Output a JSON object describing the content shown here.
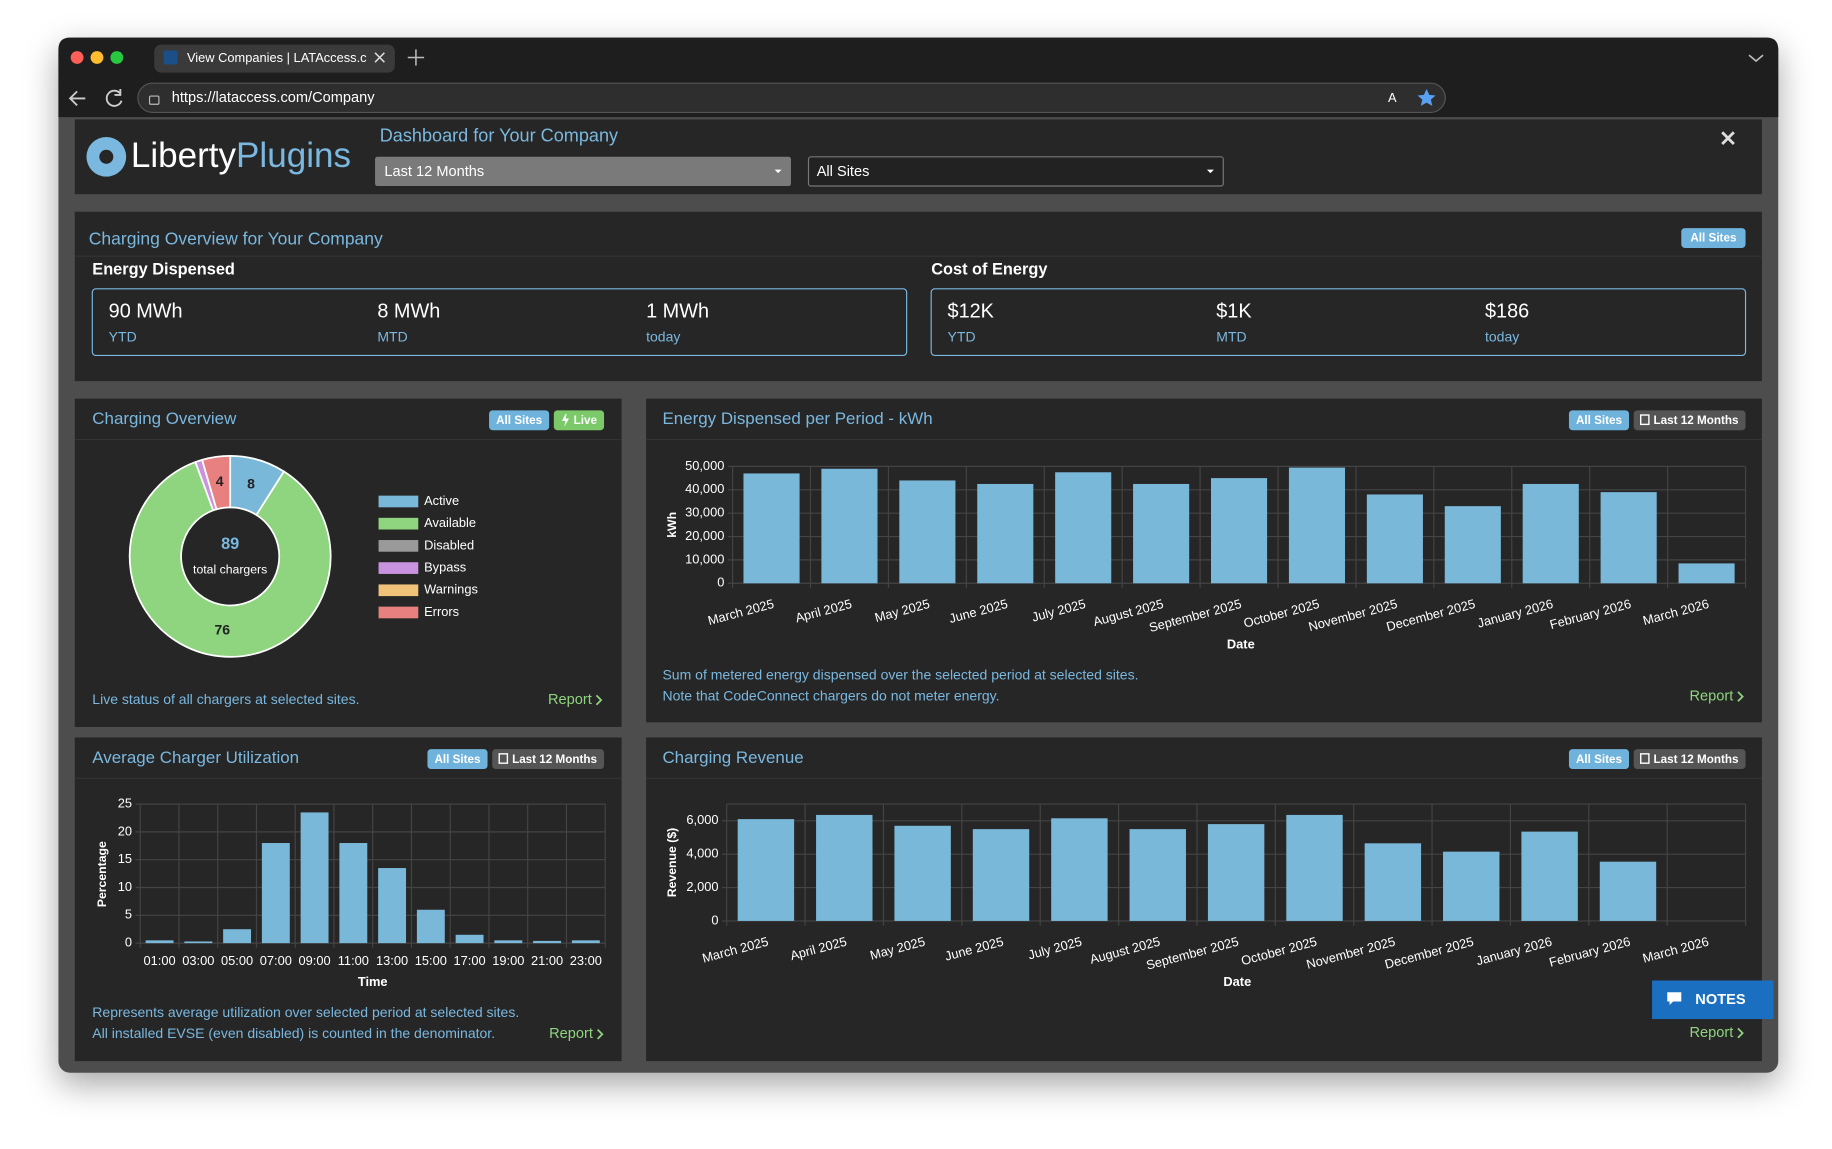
{
  "browser": {
    "tab_title": "View Companies | LATAccess.c",
    "url": "https://lataccess.com/Company"
  },
  "header": {
    "logo_a": "Liberty",
    "logo_b": "Plugins",
    "title": "Dashboard for Your Company",
    "period_select": "Last 12 Months",
    "site_select": "All Sites"
  },
  "overview": {
    "title": "Charging Overview for Your Company",
    "badge": "All Sites",
    "energy": {
      "label": "Energy Dispensed",
      "items": [
        {
          "value": "90 MWh",
          "label": "YTD"
        },
        {
          "value": "8 MWh",
          "label": "MTD"
        },
        {
          "value": "1 MWh",
          "label": "today"
        }
      ]
    },
    "cost": {
      "label": "Cost of Energy",
      "items": [
        {
          "value": "$12K",
          "label": "YTD"
        },
        {
          "value": "$1K",
          "label": "MTD"
        },
        {
          "value": "$186",
          "label": "today"
        }
      ]
    }
  },
  "chart_data": [
    {
      "type": "pie",
      "title": "Charging Overview",
      "badges": [
        "All Sites",
        "Live"
      ],
      "categories": [
        "Active",
        "Available",
        "Disabled",
        "Bypass",
        "Warnings",
        "Errors"
      ],
      "values": [
        8,
        76,
        0,
        1,
        0,
        4
      ],
      "colors": [
        "#7ab8d9",
        "#8fd47f",
        "#9a9a9a",
        "#c993e0",
        "#f0c27a",
        "#e88080"
      ],
      "total": 89,
      "total_label": "total chargers",
      "footer": [
        "Live status of all chargers at selected sites."
      ],
      "link": "Report"
    },
    {
      "type": "bar",
      "title": "Energy Dispensed per Period - kWh",
      "badges": [
        "All Sites",
        "Last 12 Months"
      ],
      "categories": [
        "March 2025",
        "April 2025",
        "May 2025",
        "June 2025",
        "July 2025",
        "August 2025",
        "September 2025",
        "October 2025",
        "November 2025",
        "December 2025",
        "January 2026",
        "February 2026",
        "March 2026"
      ],
      "values": [
        47000,
        49000,
        44000,
        42500,
        47500,
        42500,
        45000,
        49500,
        38000,
        33000,
        42500,
        39000,
        8500
      ],
      "color": "#7ab8d9",
      "ylim": [
        0,
        50000
      ],
      "yticks": [
        0,
        {
          "value": 10000,
          "label": "10,000"
        },
        {
          "value": 20000,
          "label": "20,000"
        },
        {
          "value": 30000,
          "label": "30,000"
        },
        {
          "value": 40000,
          "label": "40,000"
        },
        {
          "value": 50000,
          "label": "50,000"
        }
      ],
      "ylabel": "kWh",
      "xlabel": "Date",
      "grid": true,
      "footer": [
        "Sum of metered energy dispensed over the selected period at selected sites.",
        "Note that CodeConnect chargers do not meter energy."
      ],
      "link": "Report"
    },
    {
      "type": "bar",
      "title": "Average Charger Utilization",
      "badges": [
        "All Sites",
        "Last 12 Months"
      ],
      "categories": [
        "01:00",
        "03:00",
        "05:00",
        "07:00",
        "09:00",
        "11:00",
        "13:00",
        "15:00",
        "17:00",
        "19:00",
        "21:00",
        "23:00"
      ],
      "values": [
        0.5,
        0.3,
        2.5,
        18,
        23.5,
        18,
        13.5,
        6,
        1.5,
        0.5,
        0.4,
        0.5
      ],
      "color": "#7ab8d9",
      "ylim": [
        0,
        25
      ],
      "yticks": [
        0,
        5,
        10,
        15,
        20,
        25
      ],
      "ylabel": "Percentage",
      "xlabel": "Time",
      "grid": true,
      "footer": [
        "Represents average utilization over selected period at selected sites.",
        "All installed EVSE (even disabled) is counted in the denominator."
      ],
      "link": "Report"
    },
    {
      "type": "bar",
      "title": "Charging Revenue",
      "badges": [
        "All Sites",
        "Last 12 Months"
      ],
      "categories": [
        "March 2025",
        "April 2025",
        "May 2025",
        "June 2025",
        "July 2025",
        "August 2025",
        "September 2025",
        "October 2025",
        "November 2025",
        "December 2025",
        "January 2026",
        "February 2026",
        "March 2026"
      ],
      "values": [
        6100,
        6350,
        5700,
        5500,
        6150,
        5500,
        5800,
        6350,
        4650,
        4150,
        5350,
        3550,
        null
      ],
      "color": "#7ab8d9",
      "ylim": [
        0,
        7000
      ],
      "yticks": [
        0,
        {
          "value": 2000,
          "label": "2,000"
        },
        {
          "value": 4000,
          "label": "4,000"
        },
        {
          "value": 6000,
          "label": "6,000"
        }
      ],
      "ylabel": "Revenue ($)",
      "xlabel": "Date",
      "grid": true,
      "footer": [],
      "link": "Report"
    }
  ],
  "notes_button": "NOTES"
}
